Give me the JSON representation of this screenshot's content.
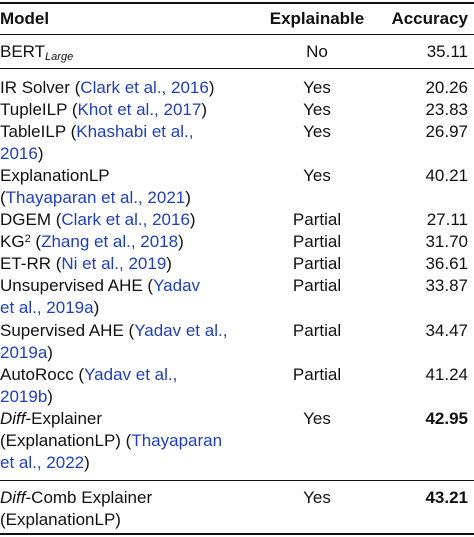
{
  "table": {
    "headers": {
      "model": "Model",
      "explainable": "Explainable",
      "accuracy": "Accuracy"
    },
    "rows": [
      {
        "model_main": "BERT",
        "model_sub": "Large",
        "explainable": "No",
        "accuracy": "35.11"
      },
      {
        "model_main": "IR Solver (",
        "cite": "Clark et al., 2016",
        "close": ")",
        "explainable": "Yes",
        "accuracy": "20.26"
      },
      {
        "model_main": "TupleILP (",
        "cite": "Khot et al., 2017",
        "close": ")",
        "explainable": "Yes",
        "accuracy": "23.83"
      },
      {
        "model_main": "TableILP (",
        "cite1": "Khashabi et al.,",
        "cite2": "2016",
        "close": ")",
        "explainable": "Yes",
        "accuracy": "26.97"
      },
      {
        "model_main": "ExplanationLP",
        "open": "(",
        "cite": "Thayaparan et al., 2021",
        "close": ")",
        "explainable": "Yes",
        "accuracy": "40.21"
      },
      {
        "model_main": "DGEM (",
        "cite": "Clark et al., 2016",
        "close": ")",
        "explainable": "Partial",
        "accuracy": "27.11"
      },
      {
        "model_main": "KG",
        "sup": "2",
        "open": " (",
        "cite": "Zhang et al., 2018",
        "close": ")",
        "explainable": "Partial",
        "accuracy": "31.70"
      },
      {
        "model_main": "ET-RR (",
        "cite": "Ni et al., 2019",
        "close": ")",
        "explainable": "Partial",
        "accuracy": "36.61"
      },
      {
        "model_main": "Unsupervised AHE (",
        "cite1": "Yadav",
        "cite2": "et al., 2019a",
        "close": ")",
        "explainable": "Partial",
        "accuracy": "33.87"
      },
      {
        "model_main": "Supervised AHE (",
        "cite1": "Yadav et al.,",
        "cite2": "2019a",
        "close": ")",
        "explainable": "Partial",
        "accuracy": "34.47"
      },
      {
        "model_main": "AutoRocc (",
        "cite1": "Yadav et al.,",
        "cite2": "2019b",
        "close": ")",
        "explainable": "Partial",
        "accuracy": "41.24"
      },
      {
        "model_it": "Diff",
        "model_main": "-Explainer",
        "line2a": "(ExplanationLP) (",
        "cite1": "Thayaparan",
        "cite2": "et al., 2022",
        "close": ")",
        "explainable": "Yes",
        "accuracy": "42.95"
      },
      {
        "model_it": "Diff",
        "model_main": "-Comb Explainer",
        "line2": "(ExplanationLP)",
        "explainable": "Yes",
        "accuracy": "43.21"
      }
    ]
  }
}
